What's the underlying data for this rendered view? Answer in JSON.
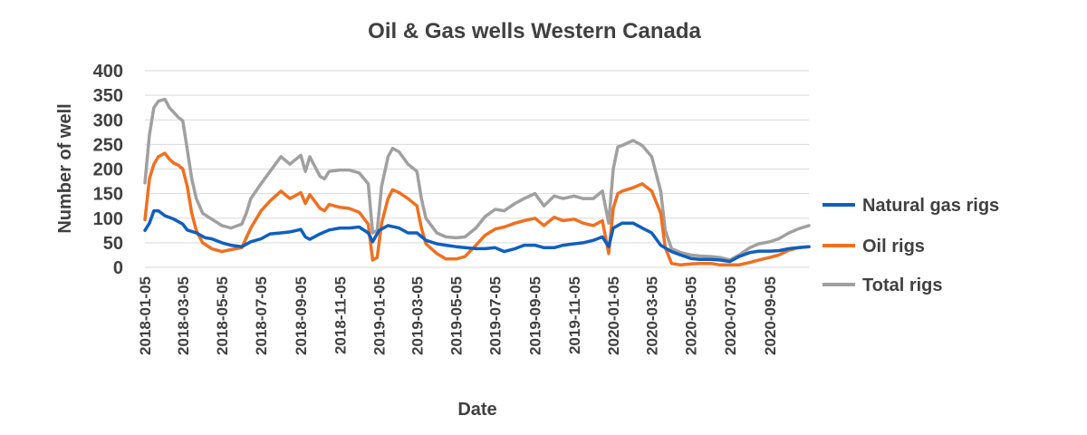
{
  "chart_data": {
    "type": "line",
    "title": "Oil & Gas wells Western Canada",
    "xlabel": "Date",
    "ylabel": "Number of well",
    "ylim": [
      0,
      400
    ],
    "yticks": [
      0,
      50,
      100,
      150,
      200,
      250,
      300,
      350,
      400
    ],
    "xlim": [
      "2018-01-05",
      "2020-11-05"
    ],
    "xticks": [
      "2018-01-05",
      "2018-03-05",
      "2018-05-05",
      "2018-07-05",
      "2018-09-05",
      "2018-11-05",
      "2019-01-05",
      "2019-03-05",
      "2019-05-05",
      "2019-07-05",
      "2019-09-05",
      "2019-11-05",
      "2020-01-05",
      "2020-03-05",
      "2020-05-05",
      "2020-07-05",
      "2020-09-05"
    ],
    "grid": true,
    "legend_position": "right",
    "series": [
      {
        "name": "Natural gas rigs",
        "color": "#0f5fbf",
        "points": [
          [
            "2018-01-05",
            75
          ],
          [
            "2018-01-12",
            90
          ],
          [
            "2018-01-19",
            115
          ],
          [
            "2018-01-26",
            115
          ],
          [
            "2018-02-05",
            105
          ],
          [
            "2018-02-19",
            98
          ],
          [
            "2018-03-05",
            88
          ],
          [
            "2018-03-12",
            76
          ],
          [
            "2018-03-26",
            70
          ],
          [
            "2018-04-09",
            60
          ],
          [
            "2018-04-19",
            58
          ],
          [
            "2018-05-05",
            50
          ],
          [
            "2018-05-19",
            45
          ],
          [
            "2018-06-05",
            42
          ],
          [
            "2018-06-19",
            52
          ],
          [
            "2018-07-05",
            58
          ],
          [
            "2018-07-19",
            68
          ],
          [
            "2018-08-05",
            70
          ],
          [
            "2018-08-19",
            72
          ],
          [
            "2018-09-05",
            77
          ],
          [
            "2018-09-12",
            62
          ],
          [
            "2018-09-19",
            57
          ],
          [
            "2018-10-05",
            68
          ],
          [
            "2018-10-19",
            76
          ],
          [
            "2018-11-05",
            80
          ],
          [
            "2018-11-19",
            80
          ],
          [
            "2018-12-05",
            82
          ],
          [
            "2018-12-19",
            70
          ],
          [
            "2018-12-26",
            52
          ],
          [
            "2019-01-05",
            75
          ],
          [
            "2019-01-19",
            85
          ],
          [
            "2019-02-05",
            80
          ],
          [
            "2019-02-19",
            70
          ],
          [
            "2019-03-05",
            70
          ],
          [
            "2019-03-19",
            55
          ],
          [
            "2019-04-05",
            48
          ],
          [
            "2019-04-19",
            45
          ],
          [
            "2019-05-05",
            42
          ],
          [
            "2019-05-19",
            40
          ],
          [
            "2019-06-05",
            38
          ],
          [
            "2019-06-19",
            38
          ],
          [
            "2019-07-05",
            40
          ],
          [
            "2019-07-19",
            32
          ],
          [
            "2019-08-05",
            38
          ],
          [
            "2019-08-19",
            45
          ],
          [
            "2019-09-05",
            45
          ],
          [
            "2019-09-19",
            40
          ],
          [
            "2019-10-05",
            40
          ],
          [
            "2019-10-19",
            45
          ],
          [
            "2019-11-05",
            48
          ],
          [
            "2019-11-19",
            50
          ],
          [
            "2019-12-05",
            55
          ],
          [
            "2019-12-19",
            62
          ],
          [
            "2019-12-29",
            42
          ],
          [
            "2020-01-05",
            80
          ],
          [
            "2020-01-19",
            90
          ],
          [
            "2020-02-05",
            90
          ],
          [
            "2020-02-19",
            80
          ],
          [
            "2020-03-05",
            70
          ],
          [
            "2020-03-19",
            45
          ],
          [
            "2020-04-05",
            32
          ],
          [
            "2020-04-19",
            25
          ],
          [
            "2020-05-05",
            18
          ],
          [
            "2020-05-19",
            16
          ],
          [
            "2020-06-05",
            16
          ],
          [
            "2020-06-19",
            15
          ],
          [
            "2020-07-05",
            12
          ],
          [
            "2020-07-19",
            22
          ],
          [
            "2020-08-05",
            30
          ],
          [
            "2020-08-19",
            33
          ],
          [
            "2020-09-05",
            33
          ],
          [
            "2020-09-19",
            34
          ],
          [
            "2020-10-05",
            38
          ],
          [
            "2020-10-19",
            40
          ],
          [
            "2020-11-05",
            42
          ]
        ]
      },
      {
        "name": "Oil rigs",
        "color": "#f07020",
        "points": [
          [
            "2018-01-05",
            97
          ],
          [
            "2018-01-12",
            180
          ],
          [
            "2018-01-19",
            210
          ],
          [
            "2018-01-26",
            225
          ],
          [
            "2018-02-05",
            232
          ],
          [
            "2018-02-12",
            220
          ],
          [
            "2018-02-19",
            212
          ],
          [
            "2018-02-26",
            208
          ],
          [
            "2018-03-05",
            200
          ],
          [
            "2018-03-12",
            165
          ],
          [
            "2018-03-19",
            110
          ],
          [
            "2018-03-26",
            75
          ],
          [
            "2018-04-05",
            50
          ],
          [
            "2018-04-19",
            38
          ],
          [
            "2018-05-05",
            32
          ],
          [
            "2018-05-19",
            36
          ],
          [
            "2018-06-05",
            40
          ],
          [
            "2018-06-12",
            60
          ],
          [
            "2018-06-19",
            80
          ],
          [
            "2018-07-05",
            115
          ],
          [
            "2018-07-19",
            135
          ],
          [
            "2018-08-05",
            155
          ],
          [
            "2018-08-19",
            140
          ],
          [
            "2018-09-05",
            152
          ],
          [
            "2018-09-12",
            130
          ],
          [
            "2018-09-19",
            148
          ],
          [
            "2018-10-05",
            120
          ],
          [
            "2018-10-12",
            115
          ],
          [
            "2018-10-19",
            128
          ],
          [
            "2018-11-05",
            122
          ],
          [
            "2018-11-19",
            120
          ],
          [
            "2018-12-05",
            112
          ],
          [
            "2018-12-19",
            88
          ],
          [
            "2018-12-26",
            15
          ],
          [
            "2019-01-02",
            20
          ],
          [
            "2019-01-09",
            90
          ],
          [
            "2019-01-19",
            140
          ],
          [
            "2019-01-26",
            158
          ],
          [
            "2019-02-05",
            152
          ],
          [
            "2019-02-19",
            140
          ],
          [
            "2019-03-05",
            125
          ],
          [
            "2019-03-12",
            80
          ],
          [
            "2019-03-19",
            48
          ],
          [
            "2019-04-05",
            28
          ],
          [
            "2019-04-19",
            17
          ],
          [
            "2019-05-05",
            17
          ],
          [
            "2019-05-19",
            22
          ],
          [
            "2019-06-05",
            45
          ],
          [
            "2019-06-19",
            65
          ],
          [
            "2019-07-05",
            78
          ],
          [
            "2019-07-19",
            82
          ],
          [
            "2019-08-05",
            90
          ],
          [
            "2019-08-19",
            95
          ],
          [
            "2019-09-05",
            100
          ],
          [
            "2019-09-19",
            85
          ],
          [
            "2019-10-05",
            102
          ],
          [
            "2019-10-19",
            95
          ],
          [
            "2019-11-05",
            98
          ],
          [
            "2019-11-19",
            90
          ],
          [
            "2019-12-05",
            85
          ],
          [
            "2019-12-19",
            95
          ],
          [
            "2019-12-29",
            28
          ],
          [
            "2020-01-05",
            120
          ],
          [
            "2020-01-12",
            150
          ],
          [
            "2020-01-19",
            155
          ],
          [
            "2020-02-05",
            162
          ],
          [
            "2020-02-19",
            170
          ],
          [
            "2020-03-05",
            155
          ],
          [
            "2020-03-19",
            110
          ],
          [
            "2020-03-26",
            40
          ],
          [
            "2020-04-05",
            8
          ],
          [
            "2020-04-19",
            5
          ],
          [
            "2020-05-05",
            7
          ],
          [
            "2020-05-19",
            8
          ],
          [
            "2020-06-05",
            8
          ],
          [
            "2020-06-19",
            5
          ],
          [
            "2020-07-05",
            5
          ],
          [
            "2020-07-19",
            5
          ],
          [
            "2020-08-05",
            10
          ],
          [
            "2020-08-19",
            15
          ],
          [
            "2020-09-05",
            20
          ],
          [
            "2020-09-19",
            25
          ],
          [
            "2020-10-05",
            35
          ],
          [
            "2020-10-19",
            40
          ],
          [
            "2020-11-05",
            42
          ]
        ]
      },
      {
        "name": "Total rigs",
        "color": "#a0a0a0",
        "points": [
          [
            "2018-01-05",
            172
          ],
          [
            "2018-01-12",
            270
          ],
          [
            "2018-01-19",
            325
          ],
          [
            "2018-01-26",
            338
          ],
          [
            "2018-02-05",
            342
          ],
          [
            "2018-02-12",
            325
          ],
          [
            "2018-02-19",
            315
          ],
          [
            "2018-02-26",
            305
          ],
          [
            "2018-03-05",
            298
          ],
          [
            "2018-03-12",
            240
          ],
          [
            "2018-03-19",
            180
          ],
          [
            "2018-03-26",
            140
          ],
          [
            "2018-04-05",
            110
          ],
          [
            "2018-04-19",
            98
          ],
          [
            "2018-05-05",
            85
          ],
          [
            "2018-05-19",
            80
          ],
          [
            "2018-06-05",
            88
          ],
          [
            "2018-06-12",
            110
          ],
          [
            "2018-06-19",
            140
          ],
          [
            "2018-07-05",
            170
          ],
          [
            "2018-07-19",
            195
          ],
          [
            "2018-08-05",
            225
          ],
          [
            "2018-08-19",
            210
          ],
          [
            "2018-09-05",
            228
          ],
          [
            "2018-09-12",
            195
          ],
          [
            "2018-09-19",
            225
          ],
          [
            "2018-10-05",
            185
          ],
          [
            "2018-10-12",
            180
          ],
          [
            "2018-10-19",
            195
          ],
          [
            "2018-11-05",
            198
          ],
          [
            "2018-11-19",
            198
          ],
          [
            "2018-12-05",
            192
          ],
          [
            "2018-12-19",
            170
          ],
          [
            "2018-12-26",
            70
          ],
          [
            "2019-01-02",
            75
          ],
          [
            "2019-01-09",
            165
          ],
          [
            "2019-01-19",
            225
          ],
          [
            "2019-01-26",
            242
          ],
          [
            "2019-02-05",
            235
          ],
          [
            "2019-02-19",
            210
          ],
          [
            "2019-03-05",
            195
          ],
          [
            "2019-03-12",
            140
          ],
          [
            "2019-03-19",
            100
          ],
          [
            "2019-04-05",
            70
          ],
          [
            "2019-04-19",
            62
          ],
          [
            "2019-05-05",
            60
          ],
          [
            "2019-05-19",
            62
          ],
          [
            "2019-06-05",
            80
          ],
          [
            "2019-06-19",
            103
          ],
          [
            "2019-07-05",
            118
          ],
          [
            "2019-07-19",
            115
          ],
          [
            "2019-08-05",
            130
          ],
          [
            "2019-08-19",
            140
          ],
          [
            "2019-09-05",
            150
          ],
          [
            "2019-09-19",
            125
          ],
          [
            "2019-10-05",
            145
          ],
          [
            "2019-10-19",
            140
          ],
          [
            "2019-11-05",
            145
          ],
          [
            "2019-11-19",
            140
          ],
          [
            "2019-12-05",
            140
          ],
          [
            "2019-12-19",
            155
          ],
          [
            "2019-12-29",
            90
          ],
          [
            "2020-01-05",
            200
          ],
          [
            "2020-01-12",
            245
          ],
          [
            "2020-01-19",
            248
          ],
          [
            "2020-02-05",
            258
          ],
          [
            "2020-02-19",
            248
          ],
          [
            "2020-03-05",
            225
          ],
          [
            "2020-03-19",
            155
          ],
          [
            "2020-03-26",
            75
          ],
          [
            "2020-04-05",
            38
          ],
          [
            "2020-04-19",
            30
          ],
          [
            "2020-05-05",
            25
          ],
          [
            "2020-05-19",
            23
          ],
          [
            "2020-06-05",
            22
          ],
          [
            "2020-06-19",
            20
          ],
          [
            "2020-07-05",
            15
          ],
          [
            "2020-07-19",
            25
          ],
          [
            "2020-08-05",
            40
          ],
          [
            "2020-08-19",
            48
          ],
          [
            "2020-09-05",
            52
          ],
          [
            "2020-09-19",
            58
          ],
          [
            "2020-10-05",
            70
          ],
          [
            "2020-10-19",
            78
          ],
          [
            "2020-11-05",
            85
          ]
        ]
      }
    ]
  }
}
